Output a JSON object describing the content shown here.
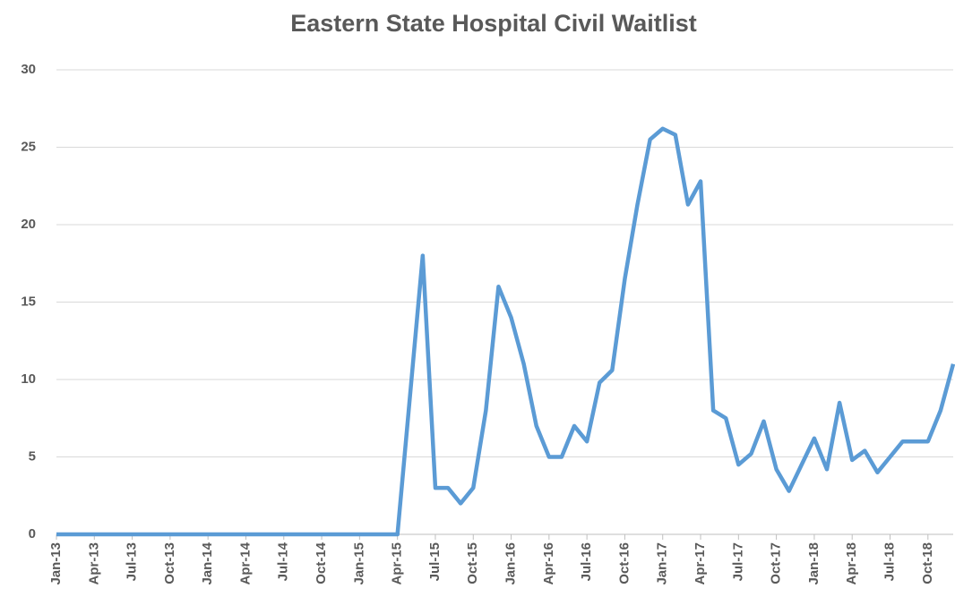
{
  "chart_data": {
    "type": "line",
    "title": "Eastern State Hospital Civil Waitlist",
    "categories": [
      "Jan-13",
      null,
      null,
      "Apr-13",
      null,
      null,
      "Jul-13",
      null,
      null,
      "Oct-13",
      null,
      null,
      "Jan-14",
      null,
      null,
      "Apr-14",
      null,
      null,
      "Jul-14",
      null,
      null,
      "Oct-14",
      null,
      null,
      "Jan-15",
      null,
      null,
      "Apr-15",
      null,
      null,
      "Jul-15",
      null,
      null,
      "Oct-15",
      null,
      null,
      "Jan-16",
      null,
      null,
      "Apr-16",
      null,
      null,
      "Jul-16",
      null,
      null,
      "Oct-16",
      null,
      null,
      "Jan-17",
      null,
      null,
      "Apr-17",
      null,
      null,
      "Jul-17",
      null,
      null,
      "Oct-17",
      null,
      null,
      "Jan-18",
      null,
      null,
      "Apr-18",
      null,
      null,
      "Jul-18",
      null,
      null,
      "Oct-18",
      null,
      null
    ],
    "series": [
      {
        "name": "Civil Waitlist",
        "color": "#5b9bd5",
        "values": [
          0,
          0,
          0,
          0,
          0,
          0,
          0,
          0,
          0,
          0,
          0,
          0,
          0,
          0,
          0,
          0,
          0,
          0,
          0,
          0,
          0,
          0,
          0,
          0,
          0,
          0,
          0,
          0,
          9,
          18,
          3,
          3,
          2,
          3,
          8,
          16,
          14,
          11,
          7,
          5,
          5,
          7,
          6,
          9.8,
          10.6,
          16.5,
          21.3,
          25.5,
          26.2,
          25.8,
          21.3,
          22.8,
          8,
          7.5,
          4.5,
          5.2,
          7.3,
          4.2,
          2.8,
          4.5,
          6.2,
          4.2,
          8.5,
          4.8,
          5.4,
          4,
          5,
          6,
          6,
          6,
          8,
          11
        ]
      }
    ],
    "ylim": [
      0,
      30
    ],
    "yticks": [
      0,
      5,
      10,
      15,
      20,
      25,
      30
    ],
    "grid": true
  }
}
